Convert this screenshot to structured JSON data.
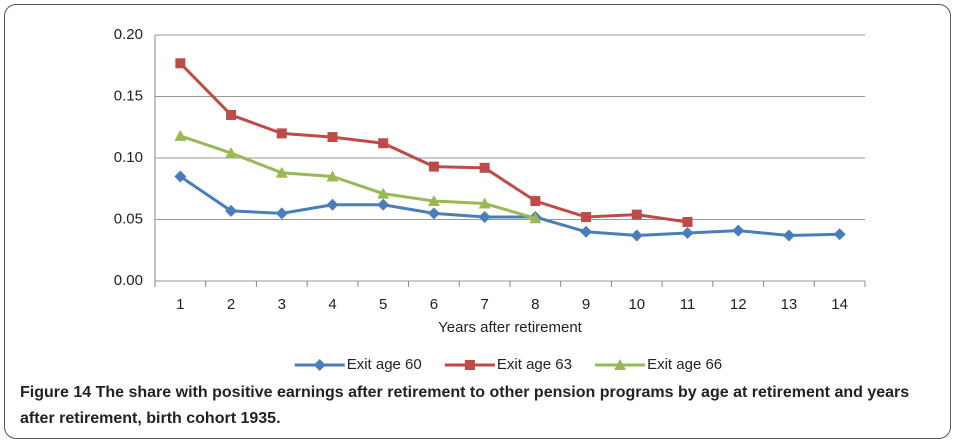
{
  "chart_data": {
    "type": "line",
    "categories": [
      "1",
      "2",
      "3",
      "4",
      "5",
      "6",
      "7",
      "8",
      "9",
      "10",
      "11",
      "12",
      "13",
      "14"
    ],
    "x_label": "Years after retirement",
    "series": [
      {
        "name": "Exit age 60",
        "color": "#4a7ebb",
        "marker": "diamond",
        "values": [
          0.085,
          0.057,
          0.055,
          0.062,
          0.062,
          0.055,
          0.052,
          0.052,
          0.04,
          0.037,
          0.039,
          0.041,
          0.037,
          0.038
        ]
      },
      {
        "name": "Exit age 63",
        "color": "#be4b48",
        "marker": "square",
        "values": [
          0.177,
          0.135,
          0.12,
          0.117,
          0.112,
          0.093,
          0.092,
          0.065,
          0.052,
          0.054,
          0.048,
          null,
          null,
          null
        ]
      },
      {
        "name": "Exit age 66",
        "color": "#98b954",
        "marker": "triangle",
        "values": [
          0.118,
          0.104,
          0.088,
          0.085,
          0.071,
          0.065,
          0.063,
          0.051,
          null,
          null,
          null,
          null,
          null,
          null
        ]
      }
    ],
    "ylim": [
      0,
      0.2
    ],
    "yticks": [
      {
        "value": 0,
        "label": "0.00"
      },
      {
        "value": 0.05,
        "label": "0.05"
      },
      {
        "value": 0.1,
        "label": "0.10"
      },
      {
        "value": 0.15,
        "label": "0.15"
      },
      {
        "value": 0.2,
        "label": "0.20"
      }
    ],
    "grid": true,
    "legend": "bottom"
  },
  "caption": {
    "label": "Figure 14",
    "text": "The share with positive earnings after retirement to other pension programs by age at retirement and years after retirement, birth cohort 1935."
  }
}
